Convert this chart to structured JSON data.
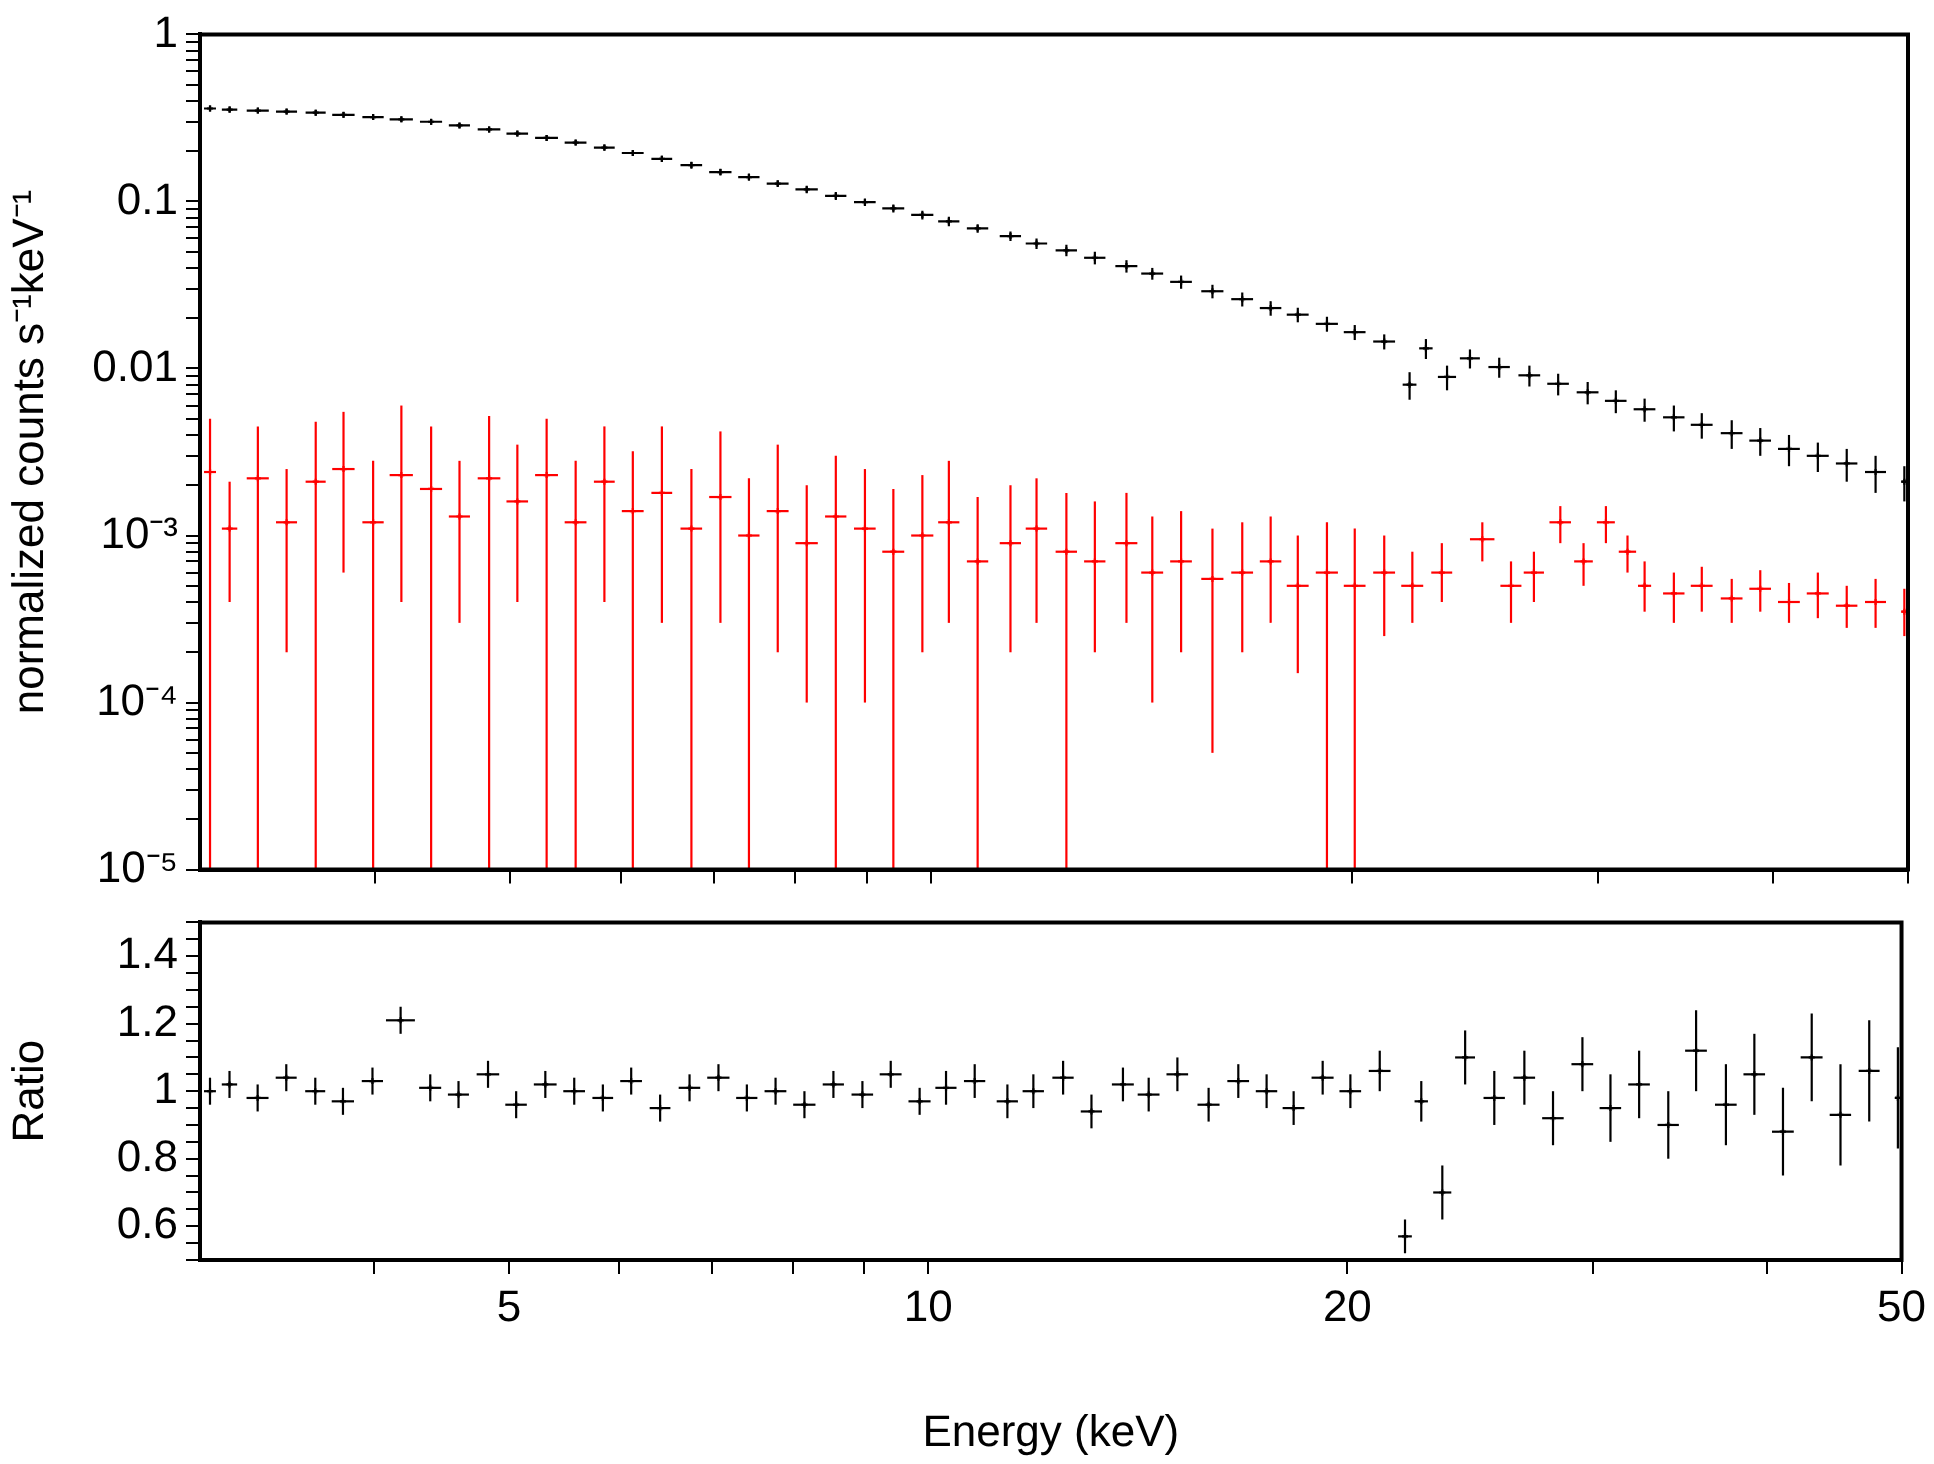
{
  "chart_data": [
    {
      "type": "scatter",
      "ylabel": "normalized counts s⁻¹keV⁻¹",
      "log": "xy",
      "tick_labels": "y",
      "marker": "cross",
      "xlim": [
        3,
        50
      ],
      "xticks": [
        {
          "value": 4,
          "label": null
        },
        5,
        {
          "value": 6,
          "label": null
        },
        {
          "value": 7,
          "label": null
        },
        {
          "value": 8,
          "label": null
        },
        {
          "value": 9,
          "label": null
        },
        10,
        20,
        {
          "value": 30,
          "label": null
        },
        {
          "value": 40,
          "label": null
        },
        50
      ],
      "ylim": [
        1e-05,
        1
      ],
      "yticks": [
        {
          "value": 1e-05,
          "label": "10⁻⁵"
        },
        {
          "value": 2e-05,
          "label": null
        },
        {
          "value": 3e-05,
          "label": null
        },
        {
          "value": 4e-05,
          "label": null
        },
        {
          "value": 5e-05,
          "label": null
        },
        {
          "value": 6e-05,
          "label": null
        },
        {
          "value": 7e-05,
          "label": null
        },
        {
          "value": 8e-05,
          "label": null
        },
        {
          "value": 9e-05,
          "label": null
        },
        {
          "value": 0.0001,
          "label": "10⁻⁴"
        },
        {
          "value": 0.0002,
          "label": null
        },
        {
          "value": 0.0003,
          "label": null
        },
        {
          "value": 0.0004,
          "label": null
        },
        {
          "value": 0.0005,
          "label": null
        },
        {
          "value": 0.0006,
          "label": null
        },
        {
          "value": 0.0007,
          "label": null
        },
        {
          "value": 0.0008,
          "label": null
        },
        {
          "value": 0.0009,
          "label": null
        },
        {
          "value": 0.001,
          "label": "10⁻³"
        },
        {
          "value": 0.002,
          "label": null
        },
        {
          "value": 0.003,
          "label": null
        },
        {
          "value": 0.004,
          "label": null
        },
        {
          "value": 0.005,
          "label": null
        },
        {
          "value": 0.006,
          "label": null
        },
        {
          "value": 0.007,
          "label": null
        },
        {
          "value": 0.008,
          "label": null
        },
        {
          "value": 0.009,
          "label": null
        },
        0.01,
        {
          "value": 0.02,
          "label": null
        },
        {
          "value": 0.03,
          "label": null
        },
        {
          "value": 0.04,
          "label": null
        },
        {
          "value": 0.05,
          "label": null
        },
        {
          "value": 0.06,
          "label": null
        },
        {
          "value": 0.07,
          "label": null
        },
        {
          "value": 0.08,
          "label": null
        },
        {
          "value": 0.09,
          "label": null
        },
        0.1,
        {
          "value": 0.2,
          "label": null
        },
        {
          "value": 0.3,
          "label": null
        },
        {
          "value": 0.4,
          "label": null
        },
        {
          "value": 0.5,
          "label": null
        },
        {
          "value": 0.6,
          "label": null
        },
        {
          "value": 0.7,
          "label": null
        },
        {
          "value": 0.8,
          "label": null
        },
        {
          "value": 0.9,
          "label": null
        },
        1
      ],
      "series": [
        {
          "color": "#000000",
          "x": [
            3.05,
            3.15,
            3.3,
            3.46,
            3.63,
            3.8,
            3.99,
            4.18,
            4.39,
            4.6,
            4.83,
            5.06,
            5.31,
            5.57,
            5.84,
            6.12,
            6.42,
            6.74,
            7.07,
            7.41,
            7.77,
            8.15,
            8.55,
            8.97,
            9.4,
            9.86,
            10.3,
            10.8,
            11.4,
            11.9,
            12.5,
            13.1,
            13.8,
            14.4,
            15.1,
            15.9,
            16.7,
            17.5,
            18.3,
            19.2,
            20.1,
            21.1,
            22.0,
            22.6,
            23.4,
            24.3,
            25.5,
            26.8,
            28.1,
            29.5,
            30.9,
            32.4,
            34.0,
            35.6,
            37.4,
            39.2,
            41.1,
            43.1,
            45.2,
            47.4,
            49.7
          ],
          "values": [
            0.36,
            0.355,
            0.35,
            0.345,
            0.34,
            0.33,
            0.32,
            0.31,
            0.3,
            0.285,
            0.27,
            0.255,
            0.24,
            0.225,
            0.21,
            0.195,
            0.18,
            0.165,
            0.15,
            0.14,
            0.128,
            0.118,
            0.108,
            0.099,
            0.091,
            0.083,
            0.076,
            0.069,
            0.062,
            0.056,
            0.051,
            0.046,
            0.041,
            0.037,
            0.033,
            0.029,
            0.026,
            0.023,
            0.021,
            0.0185,
            0.0165,
            0.0145,
            0.008,
            0.0132,
            0.0089,
            0.0115,
            0.0102,
            0.0091,
            0.0081,
            0.0072,
            0.0064,
            0.0057,
            0.0051,
            0.0046,
            0.0041,
            0.0037,
            0.0033,
            0.003,
            0.0027,
            0.0024,
            0.0021
          ],
          "errors": [
            0.015,
            0.015,
            0.014,
            0.014,
            0.014,
            0.013,
            0.013,
            0.012,
            0.012,
            0.011,
            0.011,
            0.01,
            0.01,
            0.009,
            0.009,
            0.008,
            0.008,
            0.008,
            0.007,
            0.007,
            0.006,
            0.006,
            0.006,
            0.005,
            0.005,
            0.005,
            0.005,
            0.004,
            0.004,
            0.004,
            0.004,
            0.004,
            0.0035,
            0.003,
            0.003,
            0.0027,
            0.0025,
            0.0023,
            0.0021,
            0.0019,
            0.0017,
            0.0015,
            0.0015,
            0.0018,
            0.0015,
            0.0015,
            0.0014,
            0.0013,
            0.0012,
            0.0011,
            0.001,
            0.0009,
            0.0009,
            0.0008,
            0.0008,
            0.0007,
            0.0007,
            0.0006,
            0.0006,
            0.0006,
            0.0005
          ],
          "xerrors": [
            0.03,
            0.04,
            0.06,
            0.06,
            0.06,
            0.07,
            0.07,
            0.08,
            0.08,
            0.08,
            0.09,
            0.09,
            0.1,
            0.1,
            0.1,
            0.11,
            0.11,
            0.12,
            0.13,
            0.13,
            0.14,
            0.15,
            0.15,
            0.16,
            0.17,
            0.18,
            0.18,
            0.19,
            0.2,
            0.21,
            0.22,
            0.23,
            0.25,
            0.26,
            0.27,
            0.29,
            0.3,
            0.31,
            0.33,
            0.35,
            0.36,
            0.38,
            0.25,
            0.25,
            0.35,
            0.4,
            0.45,
            0.48,
            0.5,
            0.53,
            0.55,
            0.58,
            0.6,
            0.64,
            0.67,
            0.7,
            0.74,
            0.78,
            0.8,
            0.82,
            0.25
          ]
        },
        {
          "color": "#ff0000",
          "x": [
            3.05,
            3.15,
            3.3,
            3.46,
            3.63,
            3.8,
            3.99,
            4.18,
            4.39,
            4.6,
            4.83,
            5.06,
            5.31,
            5.57,
            5.84,
            6.12,
            6.42,
            6.74,
            7.07,
            7.41,
            7.77,
            8.15,
            8.55,
            8.97,
            9.4,
            9.86,
            10.3,
            10.8,
            11.4,
            11.9,
            12.5,
            13.1,
            13.8,
            14.4,
            15.1,
            15.9,
            16.7,
            17.5,
            18.3,
            19.2,
            20.1,
            21.1,
            22.1,
            23.2,
            24.8,
            26.0,
            27.0,
            28.2,
            29.3,
            30.4,
            31.5,
            32.4,
            34.0,
            35.6,
            37.4,
            39.2,
            41.1,
            43.1,
            45.2,
            47.4,
            49.7
          ],
          "values": [
            0.0024,
            0.0011,
            0.0022,
            0.0012,
            0.0021,
            0.0025,
            0.0012,
            0.0023,
            0.0019,
            0.0013,
            0.0022,
            0.0016,
            0.0023,
            0.0012,
            0.0021,
            0.0014,
            0.0018,
            0.0011,
            0.0017,
            0.001,
            0.0014,
            0.0009,
            0.0013,
            0.0011,
            0.0008,
            0.001,
            0.0012,
            0.0007,
            0.0009,
            0.0011,
            0.0008,
            0.0007,
            0.0009,
            0.0006,
            0.0007,
            0.00055,
            0.0006,
            0.0007,
            0.0005,
            0.0006,
            0.0005,
            0.0006,
            0.0005,
            0.0006,
            0.00095,
            0.0005,
            0.0006,
            0.0012,
            0.0007,
            0.0012,
            0.0008,
            0.0005,
            0.00045,
            0.0005,
            0.00042,
            0.00048,
            0.0004,
            0.00045,
            0.00038,
            0.0004,
            0.00035
          ],
          "errors": [
            [
              1e-05,
              0.005
            ],
            [
              0.0004,
              0.0021
            ],
            [
              1e-05,
              0.0045
            ],
            [
              0.0002,
              0.0025
            ],
            [
              1e-05,
              0.0048
            ],
            [
              0.0006,
              0.0055
            ],
            [
              1e-05,
              0.0028
            ],
            [
              0.0004,
              0.006
            ],
            [
              1e-05,
              0.0045
            ],
            [
              0.0003,
              0.0028
            ],
            [
              1e-05,
              0.0052
            ],
            [
              0.0004,
              0.0035
            ],
            [
              1e-05,
              0.005
            ],
            [
              1e-05,
              0.0028
            ],
            [
              0.0004,
              0.0045
            ],
            [
              1e-05,
              0.0032
            ],
            [
              0.0003,
              0.0045
            ],
            [
              1e-05,
              0.0025
            ],
            [
              0.0003,
              0.0042
            ],
            [
              1e-05,
              0.0022
            ],
            [
              0.0002,
              0.0035
            ],
            [
              0.0001,
              0.002
            ],
            [
              1e-05,
              0.003
            ],
            [
              0.0001,
              0.0025
            ],
            [
              1e-05,
              0.0019
            ],
            [
              0.0002,
              0.0023
            ],
            [
              0.0003,
              0.0028
            ],
            [
              1e-05,
              0.0017
            ],
            [
              0.0002,
              0.002
            ],
            [
              0.0003,
              0.0022
            ],
            [
              1e-05,
              0.0018
            ],
            [
              0.0002,
              0.0016
            ],
            [
              0.0003,
              0.0018
            ],
            [
              0.0001,
              0.0013
            ],
            [
              0.0002,
              0.0014
            ],
            [
              5e-05,
              0.0011
            ],
            [
              0.0002,
              0.0012
            ],
            [
              0.0003,
              0.0013
            ],
            [
              0.00015,
              0.001
            ],
            [
              1e-05,
              0.0012
            ],
            [
              1e-05,
              0.0011
            ],
            [
              0.00025,
              0.001
            ],
            [
              0.0003,
              0.0008
            ],
            [
              0.0004,
              0.0009
            ],
            [
              0.0007,
              0.0012
            ],
            [
              0.0003,
              0.0007
            ],
            [
              0.0004,
              0.0008
            ],
            [
              0.0009,
              0.0015
            ],
            [
              0.0005,
              0.0009
            ],
            [
              0.0009,
              0.0015
            ],
            [
              0.0006,
              0.001
            ],
            [
              0.00035,
              0.0007
            ],
            [
              0.0003,
              0.0006
            ],
            [
              0.00035,
              0.00065
            ],
            [
              0.0003,
              0.00055
            ],
            [
              0.00035,
              0.00062
            ],
            [
              0.0003,
              0.00052
            ],
            [
              0.00032,
              0.0006
            ],
            [
              0.00028,
              0.0005
            ],
            [
              0.00028,
              0.00055
            ],
            [
              0.00025,
              0.00048
            ]
          ],
          "xerrors": [
            0.03,
            0.04,
            0.06,
            0.06,
            0.06,
            0.07,
            0.07,
            0.08,
            0.08,
            0.08,
            0.09,
            0.09,
            0.1,
            0.1,
            0.1,
            0.11,
            0.11,
            0.12,
            0.13,
            0.13,
            0.14,
            0.15,
            0.15,
            0.16,
            0.17,
            0.18,
            0.18,
            0.19,
            0.2,
            0.21,
            0.22,
            0.23,
            0.25,
            0.26,
            0.27,
            0.29,
            0.3,
            0.31,
            0.33,
            0.35,
            0.36,
            0.38,
            0.4,
            0.4,
            0.5,
            0.45,
            0.45,
            0.5,
            0.45,
            0.45,
            0.45,
            0.35,
            0.6,
            0.64,
            0.67,
            0.7,
            0.74,
            0.78,
            0.8,
            0.82,
            0.25
          ]
        }
      ]
    },
    {
      "type": "scatter",
      "xlabel": "Energy (keV)",
      "ylabel": "Ratio",
      "log": "x",
      "marker": "cross",
      "xlim": [
        3,
        50
      ],
      "xticks": [
        {
          "value": 4,
          "label": null
        },
        5,
        {
          "value": 6,
          "label": null
        },
        {
          "value": 7,
          "label": null
        },
        {
          "value": 8,
          "label": null
        },
        {
          "value": 9,
          "label": null
        },
        10,
        20,
        {
          "value": 30,
          "label": null
        },
        {
          "value": 40,
          "label": null
        },
        50
      ],
      "ylim": [
        0.5,
        1.5
      ],
      "yticks": [
        {
          "value": 0.5,
          "label": null
        },
        {
          "value": 0.55,
          "label": null
        },
        0.6,
        {
          "value": 0.65,
          "label": null
        },
        {
          "value": 0.7,
          "label": null
        },
        {
          "value": 0.75,
          "label": null
        },
        0.8,
        {
          "value": 0.85,
          "label": null
        },
        {
          "value": 0.9,
          "label": null
        },
        {
          "value": 0.95,
          "label": null
        },
        1,
        {
          "value": 1.05,
          "label": null
        },
        {
          "value": 1.1,
          "label": null
        },
        {
          "value": 1.15,
          "label": null
        },
        1.2,
        {
          "value": 1.25,
          "label": null
        },
        {
          "value": 1.3,
          "label": null
        },
        {
          "value": 1.35,
          "label": null
        },
        1.4,
        {
          "value": 1.45,
          "label": null
        },
        {
          "value": 1.5,
          "label": null
        }
      ],
      "series": [
        {
          "color": "#000000",
          "x": [
            3.05,
            3.15,
            3.3,
            3.46,
            3.63,
            3.8,
            3.99,
            4.18,
            4.39,
            4.6,
            4.83,
            5.06,
            5.31,
            5.57,
            5.84,
            6.12,
            6.42,
            6.74,
            7.07,
            7.41,
            7.77,
            8.15,
            8.55,
            8.97,
            9.4,
            9.86,
            10.3,
            10.8,
            11.4,
            11.9,
            12.5,
            13.1,
            13.8,
            14.4,
            15.1,
            15.9,
            16.7,
            17.5,
            18.3,
            19.2,
            20.1,
            21.1,
            22.0,
            22.6,
            23.4,
            24.3,
            25.5,
            26.8,
            28.1,
            29.5,
            30.9,
            32.4,
            34.0,
            35.6,
            37.4,
            39.2,
            41.1,
            43.1,
            45.2,
            47.4,
            49.7
          ],
          "values": [
            1.0,
            1.02,
            0.98,
            1.04,
            1.0,
            0.97,
            1.03,
            1.21,
            1.01,
            0.99,
            1.05,
            0.96,
            1.02,
            1.0,
            0.98,
            1.03,
            0.95,
            1.01,
            1.04,
            0.98,
            1.0,
            0.96,
            1.02,
            0.99,
            1.05,
            0.97,
            1.01,
            1.03,
            0.97,
            1.0,
            1.04,
            0.94,
            1.02,
            0.99,
            1.05,
            0.96,
            1.03,
            1.0,
            0.95,
            1.04,
            1.0,
            1.06,
            0.57,
            0.97,
            0.7,
            1.1,
            0.98,
            1.04,
            0.92,
            1.08,
            0.95,
            1.02,
            0.9,
            1.12,
            0.96,
            1.05,
            0.88,
            1.1,
            0.93,
            1.06,
            0.98
          ],
          "errors": [
            0.04,
            0.04,
            0.04,
            0.04,
            0.04,
            0.04,
            0.04,
            0.04,
            0.04,
            0.04,
            0.04,
            0.04,
            0.04,
            0.04,
            0.04,
            0.04,
            0.04,
            0.04,
            0.04,
            0.04,
            0.04,
            0.04,
            0.04,
            0.04,
            0.04,
            0.04,
            0.05,
            0.05,
            0.05,
            0.05,
            0.05,
            0.05,
            0.05,
            0.05,
            0.05,
            0.05,
            0.05,
            0.05,
            0.05,
            0.05,
            0.05,
            0.06,
            0.05,
            0.06,
            0.08,
            0.08,
            0.08,
            0.08,
            0.08,
            0.08,
            0.1,
            0.1,
            0.1,
            0.12,
            0.12,
            0.12,
            0.13,
            0.13,
            0.15,
            0.15,
            0.15
          ],
          "xerrors": [
            0.03,
            0.04,
            0.06,
            0.06,
            0.06,
            0.07,
            0.07,
            0.1,
            0.08,
            0.08,
            0.09,
            0.09,
            0.1,
            0.1,
            0.1,
            0.11,
            0.11,
            0.12,
            0.13,
            0.13,
            0.14,
            0.15,
            0.15,
            0.16,
            0.17,
            0.18,
            0.18,
            0.19,
            0.2,
            0.21,
            0.22,
            0.23,
            0.25,
            0.26,
            0.27,
            0.29,
            0.3,
            0.31,
            0.33,
            0.35,
            0.36,
            0.38,
            0.25,
            0.25,
            0.35,
            0.4,
            0.45,
            0.48,
            0.5,
            0.53,
            0.55,
            0.58,
            0.6,
            0.64,
            0.67,
            0.7,
            0.74,
            0.78,
            0.8,
            0.82,
            0.25
          ]
        }
      ]
    }
  ]
}
